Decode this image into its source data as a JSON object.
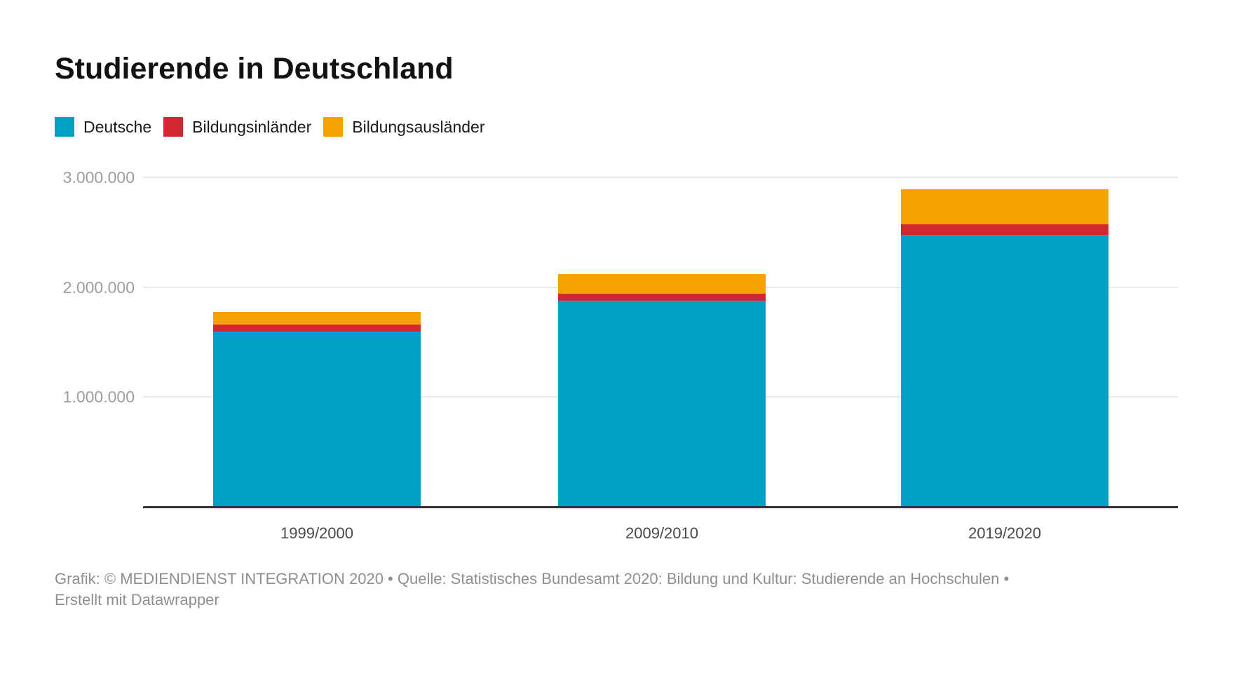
{
  "title": "Studierende in Deutschland",
  "legend": [
    {
      "label": "Deutsche",
      "color": "#00a0c6"
    },
    {
      "label": "Bildungsinländer",
      "color": "#d22630"
    },
    {
      "label": "Bildungsausländer",
      "color": "#f6a200"
    }
  ],
  "chart_data": {
    "type": "bar",
    "stacked": true,
    "title": "Studierende in Deutschland",
    "xlabel": "",
    "ylabel": "",
    "ylim": [
      0,
      3000000
    ],
    "grid": true,
    "legend_position": "top",
    "categories": [
      "1999/2000",
      "2009/2010",
      "2019/2020"
    ],
    "series": [
      {
        "name": "Deutsche",
        "color": "#00a0c6",
        "values": [
          1599000,
          1876000,
          2479000
        ]
      },
      {
        "name": "Bildungsinländer",
        "color": "#d22630",
        "values": [
          64000,
          65000,
          92000
        ]
      },
      {
        "name": "Bildungsausländer",
        "color": "#f6a200",
        "values": [
          113000,
          180000,
          320000
        ]
      }
    ],
    "yticks": [
      {
        "value": 1000000,
        "label": "1.000.000"
      },
      {
        "value": 2000000,
        "label": "2.000.000"
      },
      {
        "value": 3000000,
        "label": "3.000.000"
      }
    ]
  },
  "footer": {
    "line1": "Grafik: © MEDIENDIENST INTEGRATION 2020 • Quelle: Statistisches Bundesamt 2020: Bildung und Kultur: Studierende an Hochschulen •",
    "line2": "Erstellt mit Datawrapper"
  }
}
